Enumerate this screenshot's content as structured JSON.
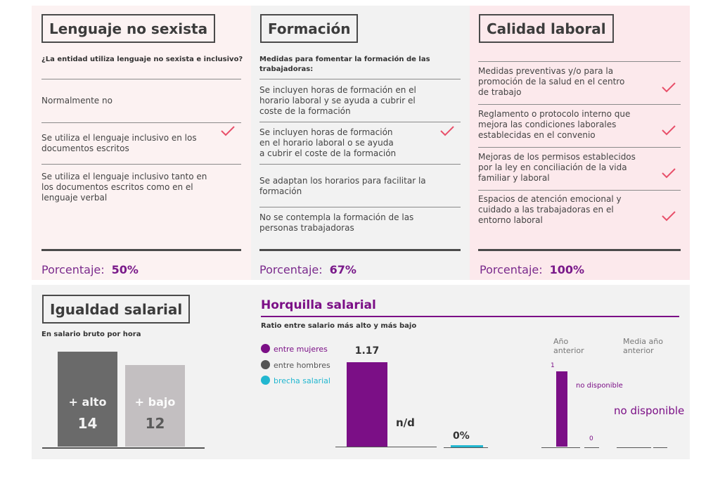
{
  "lenguaje": {
    "title": "Lenguaje no sexista",
    "question": "¿La entidad utiliza lenguaje no sexista e inclusivo?",
    "options": [
      {
        "text": "Normalmente no",
        "checked": false
      },
      {
        "text": "Se utiliza el lenguaje inclusivo en los documentos escritos",
        "checked": true
      },
      {
        "text": "Se utiliza el lenguaje inclusivo tanto en los documentos escritos como en el lenguaje verbal",
        "checked": false
      }
    ],
    "pct_label": "Porcentaje:",
    "pct_value": "50%"
  },
  "formacion": {
    "title": "Formación",
    "question": "Medidas para fomentar la formación de las trabajadoras:",
    "options": [
      {
        "text": "Se incluyen horas de formación en el horario laboral y se ayuda a cubrir el coste de la formación",
        "checked": false
      },
      {
        "text": "Se incluyen horas de formación en el horario laboral o se ayuda a cubrir el coste de la formación",
        "checked": true
      },
      {
        "text": "Se adaptan los horarios para facilitar la formación",
        "checked": false
      },
      {
        "text": "No se contempla la formación de las personas trabajadoras",
        "checked": false
      }
    ],
    "pct_label": "Porcentaje:",
    "pct_value": "67%"
  },
  "calidad": {
    "title": "Calidad laboral",
    "options": [
      {
        "text": "Medidas preventivas y/o para la promoción de la salud en el centro de trabajo",
        "checked": true
      },
      {
        "text": "Reglamento o protocolo interno que mejora las condiciones laborales establecidas en el convenio",
        "checked": true
      },
      {
        "text": "Mejoras de los permisos establecidos por la ley en conciliación de la vida familiar y laboral",
        "checked": true
      },
      {
        "text": "Espacios de atención emocional y cuidado a las trabajadoras en el entorno laboral",
        "checked": true
      }
    ],
    "pct_label": "Porcentaje:",
    "pct_value": "100%"
  },
  "igualdad": {
    "title": "Igualdad salarial",
    "subtitle": "En salario bruto por hora",
    "alto_label": "+ alto",
    "alto_value": "14",
    "bajo_label": "+ bajo",
    "bajo_value": "12"
  },
  "horquilla": {
    "title": "Horquilla salarial",
    "subtitle": "Ratio entre salario más alto y más bajo",
    "legend": [
      {
        "label": "entre mujeres",
        "color": "#7b0f86"
      },
      {
        "label": "entre hombres",
        "color": "#555555"
      },
      {
        "label": "brecha salarial",
        "color": "#22b7d0"
      }
    ],
    "mujeres_value": "1.17",
    "hombres_value": "n/d",
    "brecha_value": "0%",
    "anio_anterior": "Año anterior",
    "media_anio_anterior": "Media año anterior",
    "prev_value_1": "1",
    "prev_value_0": "0",
    "prev_nd": "no disponible",
    "media_nd": "no disponible"
  },
  "colors": {
    "accent": "#7b0f86",
    "check": "#e8506a",
    "alto_bar": "#6a6a6a",
    "bajo_bar": "#c3bfc1",
    "brecha": "#22b7d0"
  },
  "chart_data": [
    {
      "type": "bar",
      "title": "Igualdad salarial",
      "categories": [
        "+ alto",
        "+ bajo"
      ],
      "values": [
        14,
        12
      ]
    },
    {
      "type": "bar",
      "title": "Horquilla salarial",
      "categories": [
        "entre mujeres",
        "entre hombres",
        "brecha salarial"
      ],
      "values": [
        1.17,
        null,
        0
      ]
    }
  ]
}
